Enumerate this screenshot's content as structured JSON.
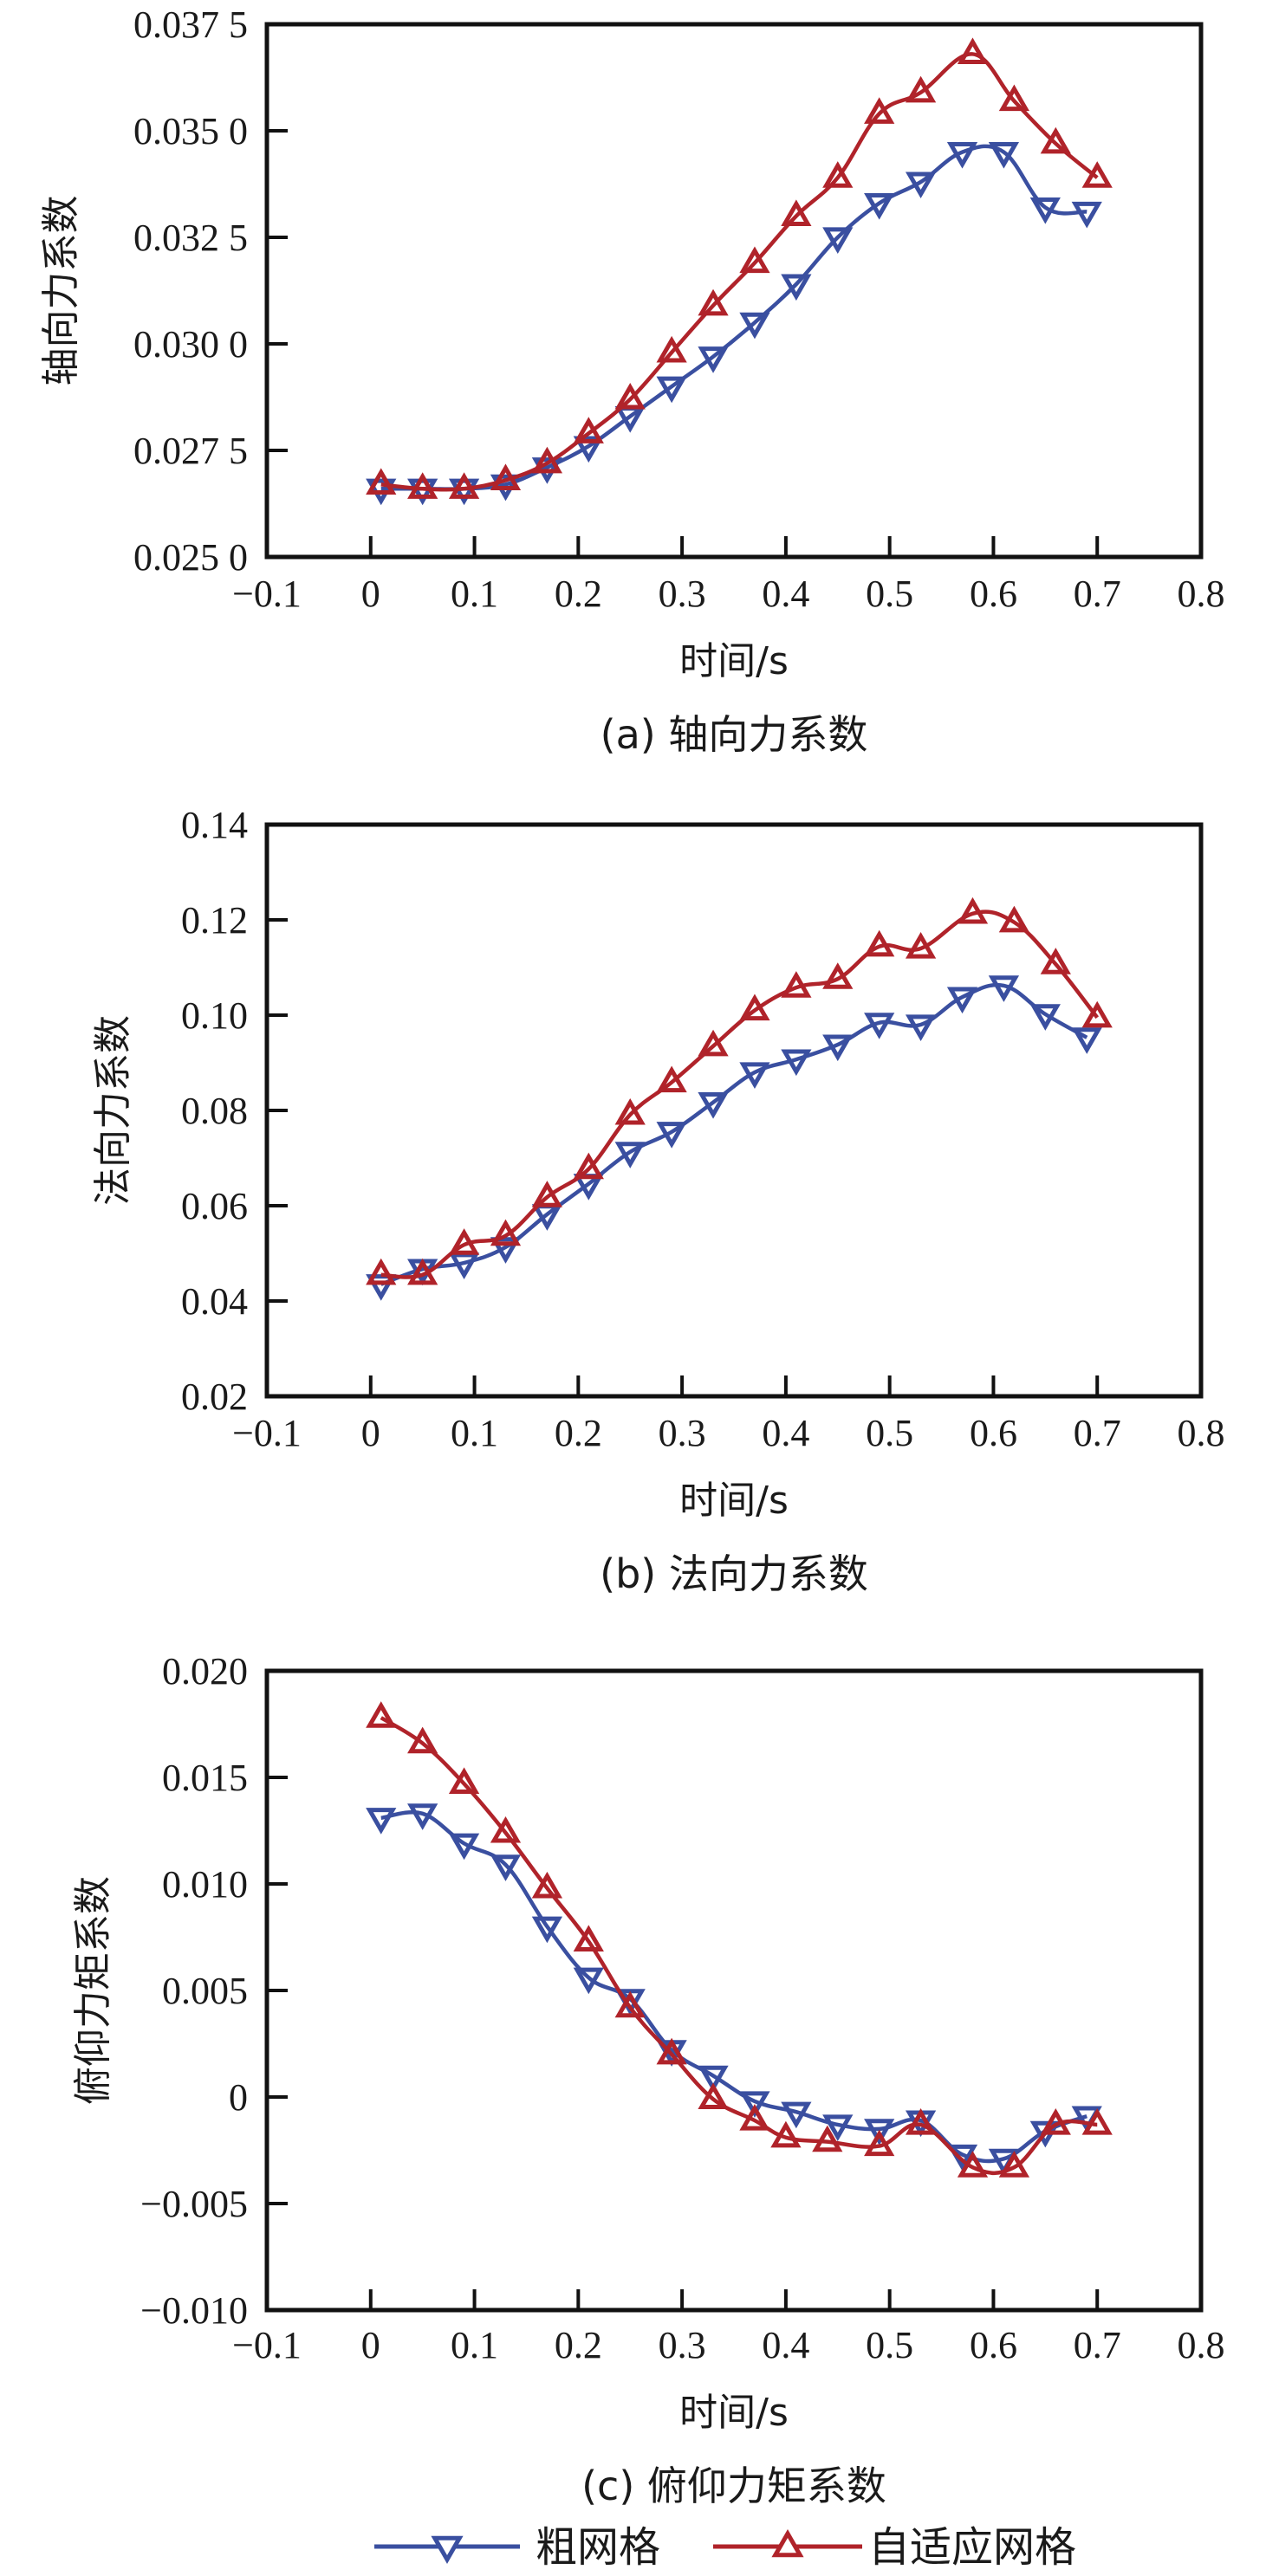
{
  "legend": {
    "items": [
      {
        "label": "粗网格",
        "marker": "triangle-down",
        "color": "#3a4fa0"
      },
      {
        "label": "自适应网格",
        "marker": "triangle-up",
        "color": "#b0232a"
      }
    ]
  },
  "chart_data": [
    {
      "type": "line",
      "caption": "(a) 轴向力系数",
      "xlabel": "时间/s",
      "ylabel": "轴向力系数",
      "xlim": [
        -0.1,
        0.8
      ],
      "ylim": [
        0.025,
        0.0375
      ],
      "xticks": [
        -0.1,
        0,
        0.1,
        0.2,
        0.3,
        0.4,
        0.5,
        0.6,
        0.7,
        0.8
      ],
      "xtick_labels": [
        "−0.1",
        "0",
        "0.1",
        "0.2",
        "0.3",
        "0.4",
        "0.5",
        "0.6",
        "0.7",
        "0.8"
      ],
      "yticks": [
        0.025,
        0.0275,
        0.03,
        0.0325,
        0.035,
        0.0375
      ],
      "ytick_labels": [
        "0.025 0",
        "0.027 5",
        "0.030 0",
        "0.032 5",
        "0.035 0",
        "0.037 5"
      ],
      "grid": false,
      "series": [
        {
          "name": "粗网格",
          "color": "#3a4fa0",
          "marker": "triangle-down",
          "x": [
            0.01,
            0.05,
            0.09,
            0.13,
            0.17,
            0.21,
            0.25,
            0.29,
            0.33,
            0.37,
            0.41,
            0.45,
            0.49,
            0.53,
            0.57,
            0.61,
            0.65,
            0.69
          ],
          "values": [
            0.0266,
            0.0266,
            0.0266,
            0.0267,
            0.0271,
            0.0276,
            0.0283,
            0.029,
            0.0297,
            0.0305,
            0.0314,
            0.0325,
            0.0333,
            0.0338,
            0.0345,
            0.0345,
            0.0332,
            0.0331
          ]
        },
        {
          "name": "自适应网格",
          "color": "#b0232a",
          "marker": "triangle-up",
          "x": [
            0.01,
            0.05,
            0.09,
            0.13,
            0.17,
            0.21,
            0.25,
            0.29,
            0.33,
            0.37,
            0.41,
            0.45,
            0.49,
            0.53,
            0.58,
            0.62,
            0.66,
            0.7
          ],
          "values": [
            0.0267,
            0.0266,
            0.0266,
            0.0268,
            0.0272,
            0.0279,
            0.0287,
            0.0298,
            0.0309,
            0.0319,
            0.033,
            0.0339,
            0.0354,
            0.0359,
            0.0368,
            0.0357,
            0.0347,
            0.0339
          ]
        }
      ]
    },
    {
      "type": "line",
      "caption": "(b) 法向力系数",
      "xlabel": "时间/s",
      "ylabel": "法向力系数",
      "xlim": [
        -0.1,
        0.8
      ],
      "ylim": [
        0.02,
        0.14
      ],
      "xticks": [
        -0.1,
        0,
        0.1,
        0.2,
        0.3,
        0.4,
        0.5,
        0.6,
        0.7,
        0.8
      ],
      "xtick_labels": [
        "−0.1",
        "0",
        "0.1",
        "0.2",
        "0.3",
        "0.4",
        "0.5",
        "0.6",
        "0.7",
        "0.8"
      ],
      "yticks": [
        0.02,
        0.04,
        0.06,
        0.08,
        0.1,
        0.12,
        0.14
      ],
      "ytick_labels": [
        "0.02",
        "0.04",
        "0.06",
        "0.08",
        "0.10",
        "0.12",
        "0.14"
      ],
      "grid": false,
      "series": [
        {
          "name": "粗网格",
          "color": "#3a4fa0",
          "marker": "triangle-down",
          "x": [
            0.01,
            0.05,
            0.09,
            0.13,
            0.17,
            0.21,
            0.25,
            0.29,
            0.33,
            0.37,
            0.41,
            0.45,
            0.49,
            0.53,
            0.57,
            0.61,
            0.65,
            0.69
          ],
          "values": [
            0.0435,
            0.0467,
            0.048,
            0.0513,
            0.0582,
            0.0646,
            0.0713,
            0.0755,
            0.0817,
            0.088,
            0.0907,
            0.0938,
            0.0984,
            0.098,
            0.1038,
            0.1062,
            0.1002,
            0.0953
          ]
        },
        {
          "name": "自适应网格",
          "color": "#b0232a",
          "marker": "triangle-up",
          "x": [
            0.01,
            0.05,
            0.09,
            0.13,
            0.17,
            0.21,
            0.25,
            0.29,
            0.33,
            0.37,
            0.41,
            0.45,
            0.49,
            0.53,
            0.58,
            0.62,
            0.66,
            0.7
          ],
          "values": [
            0.0455,
            0.0455,
            0.0518,
            0.0537,
            0.0618,
            0.0677,
            0.0791,
            0.0859,
            0.0935,
            0.101,
            0.1058,
            0.1076,
            0.1144,
            0.114,
            0.1213,
            0.1195,
            0.1107,
            0.0995
          ]
        }
      ]
    },
    {
      "type": "line",
      "caption": "(c) 俯仰力矩系数",
      "xlabel": "时间/s",
      "ylabel": "俯仰力矩系数",
      "xlim": [
        -0.1,
        0.8
      ],
      "ylim": [
        -0.01,
        0.02
      ],
      "xticks": [
        -0.1,
        0,
        0.1,
        0.2,
        0.3,
        0.4,
        0.5,
        0.6,
        0.7,
        0.8
      ],
      "xtick_labels": [
        "−0.1",
        "0",
        "0.1",
        "0.2",
        "0.3",
        "0.4",
        "0.5",
        "0.6",
        "0.7",
        "0.8"
      ],
      "yticks": [
        -0.01,
        -0.005,
        0,
        0.005,
        0.01,
        0.015,
        0.02
      ],
      "ytick_labels": [
        "−0.010",
        "−0.005",
        "0",
        "0.005",
        "0.010",
        "0.015",
        "0.020"
      ],
      "grid": false,
      "series": [
        {
          "name": "粗网格",
          "color": "#3a4fa0",
          "marker": "triangle-down",
          "x": [
            0.01,
            0.05,
            0.09,
            0.13,
            0.17,
            0.21,
            0.25,
            0.29,
            0.33,
            0.37,
            0.41,
            0.45,
            0.49,
            0.53,
            0.57,
            0.61,
            0.65,
            0.69
          ],
          "values": [
            0.0131,
            0.0133,
            0.0119,
            0.0109,
            0.008,
            0.0056,
            0.0046,
            0.0022,
            0.001,
            -0.0002,
            -0.0007,
            -0.0013,
            -0.0015,
            -0.0011,
            -0.0027,
            -0.0029,
            -0.0016,
            -0.0009
          ]
        },
        {
          "name": "自适应网格",
          "color": "#b0232a",
          "marker": "triangle-up",
          "x": [
            0.01,
            0.05,
            0.09,
            0.13,
            0.17,
            0.21,
            0.25,
            0.29,
            0.33,
            0.37,
            0.4,
            0.44,
            0.49,
            0.53,
            0.58,
            0.62,
            0.66,
            0.7
          ],
          "values": [
            0.0178,
            0.0166,
            0.0147,
            0.0124,
            0.0098,
            0.0073,
            0.0042,
            0.002,
            -0.0001,
            -0.0011,
            -0.0019,
            -0.0021,
            -0.0023,
            -0.0013,
            -0.0033,
            -0.0033,
            -0.0013,
            -0.0013
          ]
        }
      ]
    }
  ]
}
